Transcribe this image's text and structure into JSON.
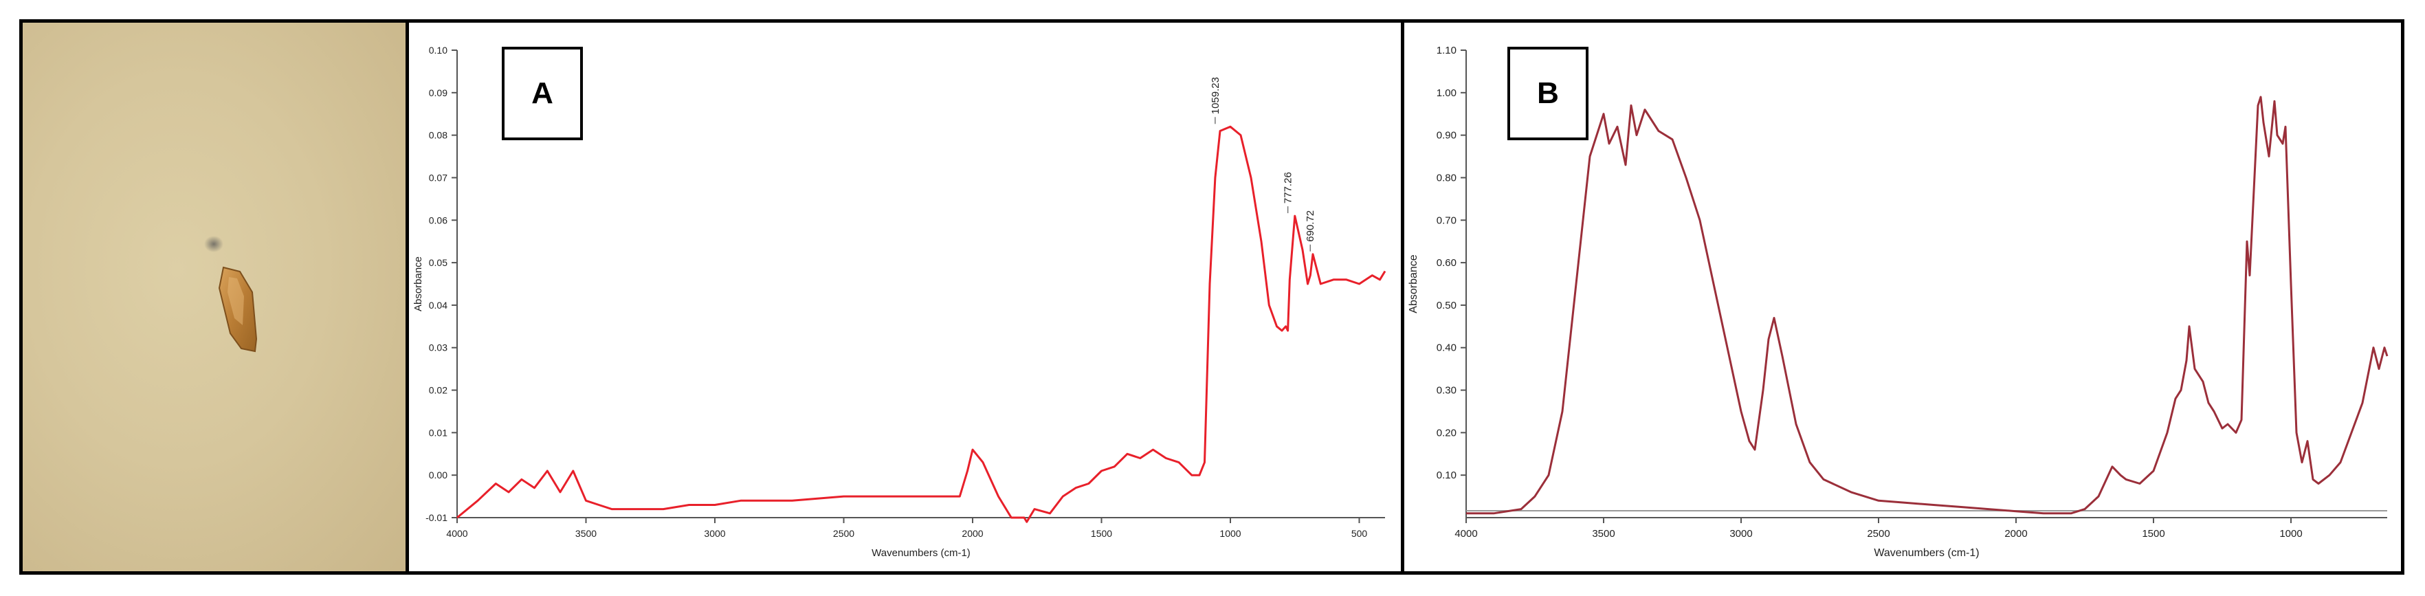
{
  "chart_data": [
    {
      "type": "line",
      "panel_label": "A",
      "xlabel": "Wavenumbers (cm-1)",
      "ylabel": "Absorbance",
      "xlim": [
        4000,
        400
      ],
      "ylim": [
        -0.01,
        0.1
      ],
      "x_ticks": [
        "4000",
        "3500",
        "3000",
        "2500",
        "2000",
        "1500",
        "1000",
        "500"
      ],
      "y_ticks": [
        "-0.01",
        "0.00",
        "0.01",
        "0.02",
        "0.03",
        "0.04",
        "0.05",
        "0.06",
        "0.07",
        "0.08",
        "0.09",
        "0.10"
      ],
      "peak_labels": [
        "1059.23",
        "777.26",
        "690.72"
      ],
      "line_color": "#e8202a",
      "series": [
        {
          "x": [
            4000,
            3920,
            3850,
            3800,
            3750,
            3700,
            3650,
            3600,
            3550,
            3500,
            3450,
            3400,
            3300,
            3200,
            3100,
            3000,
            2900,
            2850,
            2700,
            2500,
            2300,
            2200,
            2050,
            2020,
            2000,
            1960,
            1900,
            1850,
            1800,
            1790,
            1760,
            1700,
            1650,
            1600,
            1550,
            1500,
            1450,
            1400,
            1350,
            1300,
            1250,
            1200,
            1150,
            1120,
            1100,
            1080,
            1059,
            1040,
            1000,
            960,
            920,
            880,
            850,
            820,
            800,
            785,
            777,
            770,
            750,
            720,
            700,
            690,
            680,
            650,
            600,
            550,
            500,
            450,
            420,
            400
          ],
          "y": [
            -0.01,
            -0.006,
            -0.002,
            -0.004,
            -0.001,
            -0.003,
            0.001,
            -0.004,
            0.001,
            -0.006,
            -0.007,
            -0.008,
            -0.008,
            -0.008,
            -0.007,
            -0.007,
            -0.006,
            -0.006,
            -0.006,
            -0.005,
            -0.005,
            -0.005,
            -0.005,
            0.001,
            0.006,
            0.003,
            -0.005,
            -0.01,
            -0.01,
            -0.011,
            -0.008,
            -0.009,
            -0.005,
            -0.003,
            -0.002,
            0.001,
            0.002,
            0.005,
            0.004,
            0.006,
            0.004,
            0.003,
            0.0,
            0.0,
            0.003,
            0.045,
            0.07,
            0.081,
            0.082,
            0.08,
            0.07,
            0.055,
            0.04,
            0.035,
            0.034,
            0.035,
            0.034,
            0.046,
            0.061,
            0.053,
            0.045,
            0.047,
            0.052,
            0.045,
            0.046,
            0.046,
            0.045,
            0.047,
            0.046,
            0.048
          ]
        }
      ]
    },
    {
      "type": "line",
      "panel_label": "B",
      "xlabel": "Wavenumbers (cm-1)",
      "ylabel": "Absorbance",
      "xlim": [
        4000,
        650
      ],
      "ylim": [
        0.0,
        1.1
      ],
      "x_ticks": [
        "4000",
        "3500",
        "3000",
        "2500",
        "2000",
        "1500",
        "1000"
      ],
      "y_ticks": [
        "0.10",
        "0.20",
        "0.30",
        "0.40",
        "0.50",
        "0.60",
        "0.70",
        "0.80",
        "0.90",
        "1.00",
        "1.10"
      ],
      "line_color": "#9b2f3a",
      "series": [
        {
          "x": [
            4000,
            3900,
            3800,
            3750,
            3700,
            3650,
            3600,
            3550,
            3500,
            3480,
            3450,
            3420,
            3400,
            3380,
            3350,
            3300,
            3250,
            3200,
            3150,
            3100,
            3050,
            3000,
            2970,
            2950,
            2920,
            2900,
            2880,
            2850,
            2800,
            2750,
            2700,
            2600,
            2500,
            2400,
            2300,
            2200,
            2100,
            2000,
            1900,
            1800,
            1750,
            1700,
            1650,
            1620,
            1600,
            1550,
            1500,
            1450,
            1420,
            1400,
            1380,
            1370,
            1350,
            1320,
            1300,
            1280,
            1250,
            1230,
            1200,
            1180,
            1160,
            1150,
            1120,
            1110,
            1100,
            1080,
            1060,
            1050,
            1030,
            1020,
            1000,
            980,
            960,
            940,
            920,
            900,
            860,
            820,
            780,
            740,
            700,
            680,
            660,
            650
          ],
          "y": [
            0.01,
            0.01,
            0.02,
            0.05,
            0.1,
            0.25,
            0.55,
            0.85,
            0.95,
            0.88,
            0.92,
            0.83,
            0.97,
            0.9,
            0.96,
            0.91,
            0.89,
            0.8,
            0.7,
            0.55,
            0.4,
            0.25,
            0.18,
            0.16,
            0.3,
            0.42,
            0.47,
            0.38,
            0.22,
            0.13,
            0.09,
            0.06,
            0.04,
            0.035,
            0.03,
            0.025,
            0.02,
            0.015,
            0.01,
            0.01,
            0.02,
            0.05,
            0.12,
            0.1,
            0.09,
            0.08,
            0.11,
            0.2,
            0.28,
            0.3,
            0.37,
            0.45,
            0.35,
            0.32,
            0.27,
            0.25,
            0.21,
            0.22,
            0.2,
            0.23,
            0.65,
            0.57,
            0.97,
            0.99,
            0.93,
            0.85,
            0.98,
            0.9,
            0.88,
            0.92,
            0.55,
            0.2,
            0.13,
            0.18,
            0.09,
            0.08,
            0.1,
            0.13,
            0.2,
            0.27,
            0.4,
            0.35,
            0.4,
            0.38
          ]
        }
      ]
    }
  ]
}
